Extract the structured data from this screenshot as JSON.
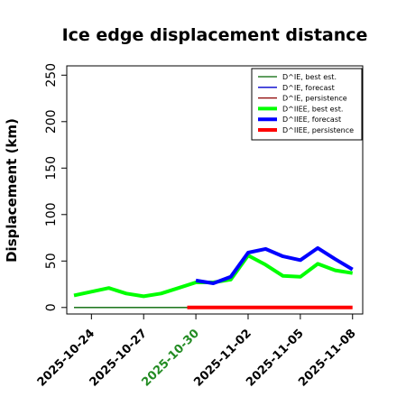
{
  "chart_data": {
    "type": "line",
    "title": "Ice edge displacement distance",
    "xlabel": "",
    "ylabel": "Displacement (km)",
    "ylim": [
      -7,
      260
    ],
    "yticks": [
      0,
      50,
      100,
      150,
      200,
      250
    ],
    "x_range": [
      "2025-10-22T14:00",
      "2025-11-08T14:00"
    ],
    "x_ticks": [
      {
        "label": "2025-10-24",
        "date": "2025-10-24",
        "color": "#000000"
      },
      {
        "label": "2025-10-27",
        "date": "2025-10-27",
        "color": "#000000"
      },
      {
        "label": "2025-10-30",
        "date": "2025-10-30",
        "color": "#228B22"
      },
      {
        "label": "2025-11-02",
        "date": "2025-11-02",
        "color": "#000000"
      },
      {
        "label": "2025-11-05",
        "date": "2025-11-05",
        "color": "#000000"
      },
      {
        "label": "2025-11-08",
        "date": "2025-11-08",
        "color": "#000000"
      }
    ],
    "legend_position": "top-right",
    "series": [
      {
        "name": "D^IE, best est.",
        "color": "#006400",
        "width": 1.3,
        "points": [
          [
            "2025-10-23T00:00",
            0
          ],
          [
            "2025-10-29T12:00",
            0
          ]
        ]
      },
      {
        "name": "D^IE, forecast",
        "color": "#0000CD",
        "width": 1.3,
        "points": []
      },
      {
        "name": "D^IE, persistence",
        "color": "#8B0000",
        "width": 1.3,
        "points": []
      },
      {
        "name": "D^IIEE, best est.",
        "color": "#00FF00",
        "width": 4,
        "points": [
          [
            "2025-10-23T00:00",
            13
          ],
          [
            "2025-10-24T00:00",
            17
          ],
          [
            "2025-10-25T00:00",
            21
          ],
          [
            "2025-10-26T00:00",
            15
          ],
          [
            "2025-10-27T00:00",
            12
          ],
          [
            "2025-10-28T00:00",
            15
          ],
          [
            "2025-10-29T00:00",
            21
          ],
          [
            "2025-10-30T00:00",
            27
          ],
          [
            "2025-10-31T00:00",
            27
          ],
          [
            "2025-11-01T00:00",
            30
          ],
          [
            "2025-11-02T00:00",
            56
          ],
          [
            "2025-11-03T00:00",
            46
          ],
          [
            "2025-11-04T00:00",
            34
          ],
          [
            "2025-11-05T00:00",
            33
          ],
          [
            "2025-11-06T00:00",
            47
          ],
          [
            "2025-11-07T00:00",
            40
          ],
          [
            "2025-11-08T00:00",
            37
          ]
        ]
      },
      {
        "name": "D^IIEE, forecast",
        "color": "#0000FF",
        "width": 4,
        "points": [
          [
            "2025-10-30T00:00",
            29
          ],
          [
            "2025-10-31T00:00",
            26
          ],
          [
            "2025-11-01T00:00",
            33
          ],
          [
            "2025-11-02T00:00",
            59
          ],
          [
            "2025-11-03T00:00",
            63
          ],
          [
            "2025-11-04T00:00",
            55
          ],
          [
            "2025-11-05T00:00",
            51
          ],
          [
            "2025-11-06T00:00",
            64
          ],
          [
            "2025-11-07T00:00",
            52
          ],
          [
            "2025-11-08T00:00",
            41
          ]
        ]
      },
      {
        "name": "D^IIEE, persistence",
        "color": "#FF0000",
        "width": 4,
        "points": [
          [
            "2025-10-29T12:00",
            0
          ],
          [
            "2025-11-08T00:00",
            0
          ]
        ]
      }
    ]
  }
}
